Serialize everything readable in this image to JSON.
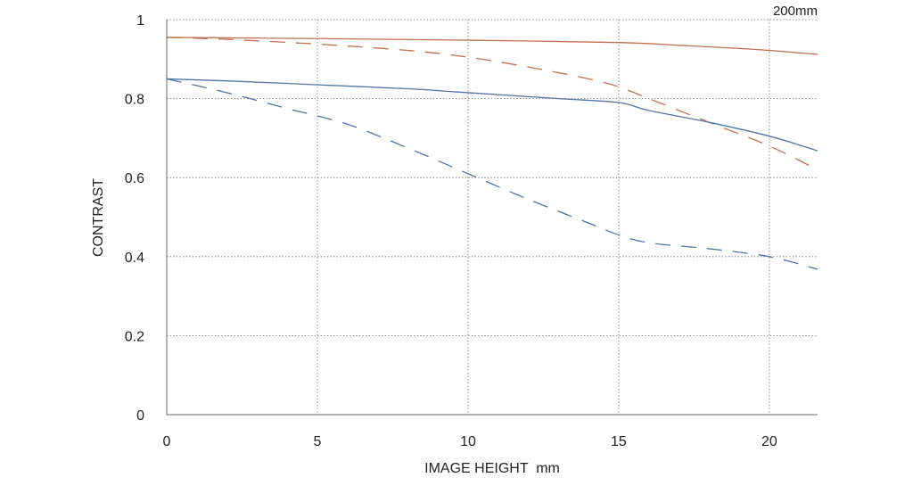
{
  "chart_data": {
    "type": "line",
    "title": "",
    "corner_label": "200mm",
    "xlabel": "IMAGE HEIGHT  mm",
    "ylabel": "CONTRAST",
    "xlim": [
      0,
      21.6
    ],
    "ylim": [
      0,
      1
    ],
    "xticks": [
      0,
      5,
      10,
      15,
      20
    ],
    "yticks": [
      0,
      0.2,
      0.4,
      0.6,
      0.8,
      1
    ],
    "ytick_labels": [
      "0",
      "0.2",
      "0.4",
      "0.6",
      "0.8",
      "1"
    ],
    "grid": true,
    "legend": "none",
    "series": [
      {
        "color": "#c0704f",
        "style": "solid",
        "x": [
          0,
          5,
          10,
          15,
          17,
          19,
          20,
          21.6
        ],
        "y": [
          0.955,
          0.952,
          0.948,
          0.942,
          0.935,
          0.927,
          0.922,
          0.912
        ]
      },
      {
        "color": "#c0704f",
        "style": "dashed",
        "x": [
          0,
          2,
          5,
          8,
          10,
          12,
          14,
          15,
          16,
          18,
          20,
          21.6
        ],
        "y": [
          0.955,
          0.95,
          0.938,
          0.922,
          0.905,
          0.88,
          0.85,
          0.83,
          0.8,
          0.74,
          0.68,
          0.62
        ]
      },
      {
        "color": "#4f75a8",
        "style": "solid",
        "x": [
          0,
          2,
          5,
          8,
          10,
          13,
          15,
          16,
          18,
          20,
          21.6
        ],
        "y": [
          0.85,
          0.845,
          0.835,
          0.825,
          0.815,
          0.8,
          0.79,
          0.77,
          0.74,
          0.705,
          0.668
        ]
      },
      {
        "color": "#4f75a8",
        "style": "dashed",
        "x": [
          0,
          2,
          4,
          6,
          8,
          10,
          12,
          14,
          15,
          16,
          18,
          20,
          21.6
        ],
        "y": [
          0.85,
          0.815,
          0.775,
          0.735,
          0.675,
          0.61,
          0.545,
          0.485,
          0.455,
          0.435,
          0.42,
          0.4,
          0.368
        ]
      }
    ]
  }
}
